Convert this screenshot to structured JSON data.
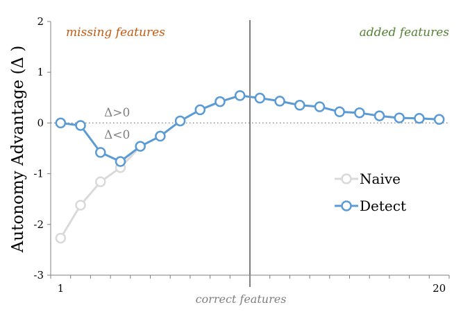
{
  "chart_data": {
    "type": "line",
    "ylabel": "Autonomy Advantage (Δ )",
    "xlabel": "correct features",
    "x_tick_labels": [
      "1",
      "20"
    ],
    "ylim": [
      -3,
      2
    ],
    "y_ticks": [
      2,
      1,
      0,
      -1,
      -2,
      -3
    ],
    "xlim": [
      0.5,
      20.5
    ],
    "annotations": {
      "left": "missing features",
      "right": "added features",
      "above_zero": "Δ>0",
      "below_zero": "Δ<0"
    },
    "reference_lines": {
      "vertical_x": 10.5,
      "horizontal_y": 0
    },
    "series": [
      {
        "name": "Naive",
        "color": "#d9d9d9",
        "x": [
          1,
          2,
          3,
          4,
          5,
          6,
          7,
          8,
          9,
          10,
          11,
          12,
          13,
          14,
          15,
          16,
          17,
          18,
          19,
          20
        ],
        "values": [
          -2.27,
          -1.62,
          -1.16,
          -0.88,
          -0.46,
          -0.26,
          0.04,
          0.26,
          0.42,
          0.54,
          0.49,
          0.43,
          0.35,
          0.32,
          0.22,
          0.2,
          0.14,
          0.1,
          0.09,
          0.07
        ]
      },
      {
        "name": "Detect",
        "color": "#5b9bd5",
        "x": [
          1,
          2,
          3,
          4,
          5,
          6,
          7,
          8,
          9,
          10,
          11,
          12,
          13,
          14,
          15,
          16,
          17,
          18,
          19,
          20
        ],
        "values": [
          0.0,
          -0.05,
          -0.58,
          -0.76,
          -0.46,
          -0.26,
          0.04,
          0.26,
          0.42,
          0.54,
          0.49,
          0.43,
          0.35,
          0.32,
          0.22,
          0.2,
          0.14,
          0.1,
          0.09,
          0.07
        ]
      }
    ],
    "legend_position": "right"
  },
  "colors": {
    "axis": "#7f7f7f",
    "missing_label": "#c55a11",
    "added_label": "#548235",
    "delta_label": "#7f7f7f",
    "zero_line": "#7f7f7f"
  }
}
